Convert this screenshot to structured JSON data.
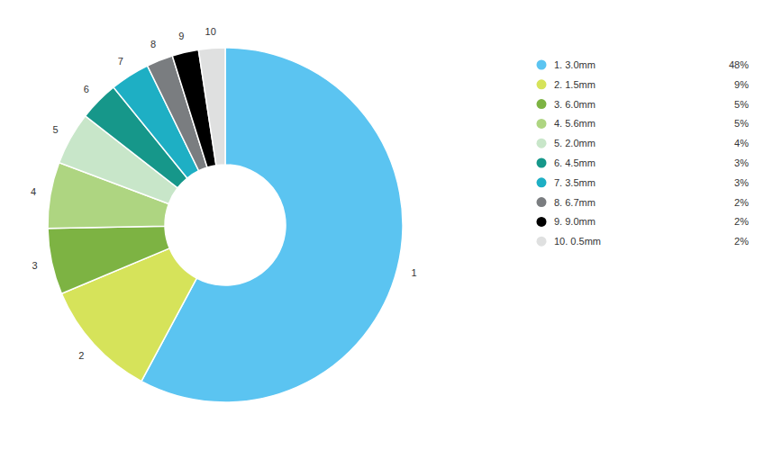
{
  "chart_data": {
    "type": "donut",
    "labels": [
      "1",
      "2",
      "3",
      "4",
      "5",
      "6",
      "7",
      "8",
      "9",
      "10"
    ],
    "categories": [
      "1. 3.0mm",
      "2. 1.5mm",
      "3. 6.0mm",
      "4. 5.6mm",
      "5. 2.0mm",
      "6. 4.5mm",
      "7. 3.5mm",
      "8. 6.7mm",
      "9. 9.0mm",
      "10. 0.5mm"
    ],
    "values": [
      48,
      9,
      5,
      5,
      4,
      3,
      3,
      2,
      2,
      2
    ],
    "value_labels": [
      "48%",
      "9%",
      "5%",
      "5%",
      "4%",
      "3%",
      "3%",
      "2%",
      "2%",
      "2%"
    ],
    "colors": [
      "#5bc4f1",
      "#d6e35a",
      "#7db343",
      "#aed581",
      "#c8e6c9",
      "#16978a",
      "#1eafc4",
      "#7a7d80",
      "#000000",
      "#dfe0e0"
    ],
    "legend": "right"
  }
}
